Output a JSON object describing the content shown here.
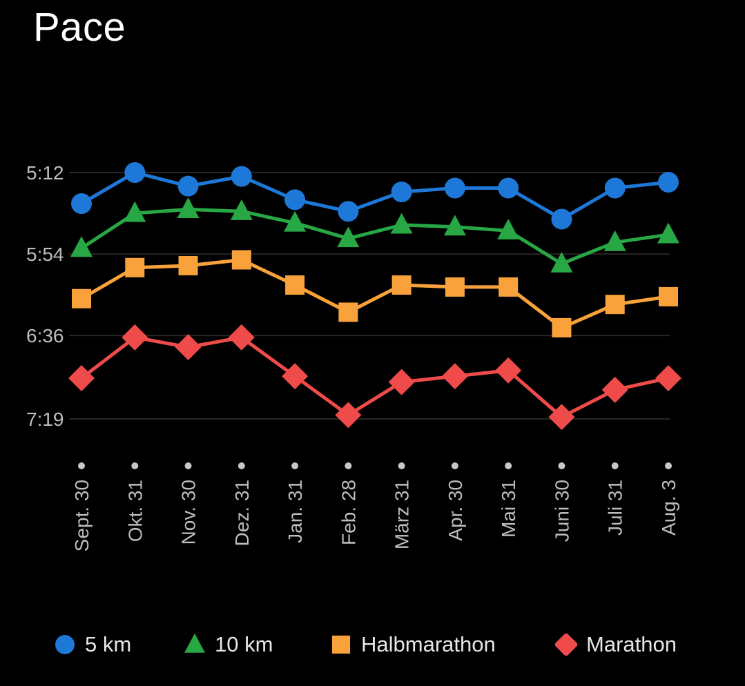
{
  "title": "Pace",
  "chart_data": {
    "type": "line",
    "title": "Pace",
    "xlabel": "",
    "ylabel": "",
    "categories": [
      "Sept. 30",
      "Okt. 31",
      "Nov. 30",
      "Dez. 31",
      "Jan. 31",
      "Feb. 28",
      "März 31",
      "Apr. 30",
      "Mai 31",
      "Juni 30",
      "Juli 31",
      "Aug. 3"
    ],
    "y_ticks": [
      {
        "label": "5:12",
        "seconds": 312
      },
      {
        "label": "5:54",
        "seconds": 354
      },
      {
        "label": "6:36",
        "seconds": 396
      },
      {
        "label": "7:19",
        "seconds": 439
      }
    ],
    "y_unit": "min:sec",
    "y_inverted": true,
    "ylim_seconds": [
      312,
      439
    ],
    "grid": true,
    "legend_position": "bottom",
    "series": [
      {
        "name": "5 km",
        "color": "#1E78D8",
        "marker": "circle",
        "values_seconds": [
          328,
          312,
          319,
          314,
          326,
          332,
          322,
          320,
          320,
          336,
          320,
          317
        ]
      },
      {
        "name": "10 km",
        "color": "#28A745",
        "marker": "triangle",
        "values_seconds": [
          351,
          333,
          331,
          332,
          338,
          346,
          339,
          340,
          342,
          359,
          348,
          344
        ]
      },
      {
        "name": "Halbmarathon",
        "color": "#F9A23C",
        "marker": "square",
        "values_seconds": [
          377,
          361,
          360,
          357,
          370,
          384,
          370,
          371,
          371,
          392,
          380,
          376
        ]
      },
      {
        "name": "Marathon",
        "color": "#EF4B4B",
        "marker": "diamond",
        "values_seconds": [
          418,
          397,
          402,
          397,
          417,
          437,
          420,
          417,
          414,
          438,
          424,
          418
        ]
      }
    ]
  }
}
